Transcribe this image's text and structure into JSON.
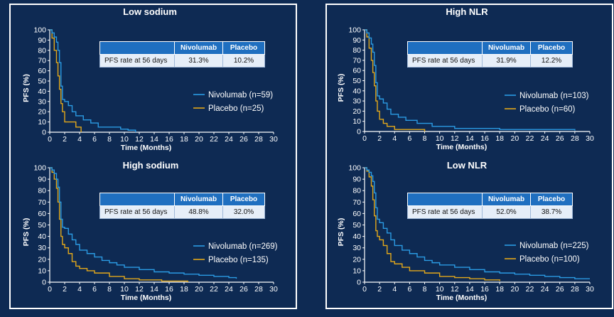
{
  "colors": {
    "background": "#0e2a53",
    "nivolumab": "#2b9be3",
    "placebo": "#e3a81a",
    "axis": "#ffffff"
  },
  "table": {
    "row_label": "PFS rate at 56 days",
    "col_nivolumab": "Nivolumab",
    "col_placebo": "Placebo"
  },
  "chart_data": [
    {
      "type": "line",
      "title": "Low sodium",
      "xlabel": "Time (Months)",
      "ylabel": "PFS (%)",
      "xlim": [
        0,
        30
      ],
      "ylim": [
        0,
        100
      ],
      "xticks": [
        "0",
        "2",
        "4",
        "6",
        "8",
        "10",
        "12",
        "14",
        "16",
        "18",
        "20",
        "22",
        "24",
        "26",
        "28",
        "30"
      ],
      "yticks": [
        "0",
        "10",
        "20",
        "30",
        "40",
        "50",
        "60",
        "70",
        "80",
        "90",
        "100"
      ],
      "legend": [
        "Nivolumab (n=59)",
        "Placebo (n=25)"
      ],
      "pfs_rate": {
        "nivolumab": "31.3%",
        "placebo": "10.2%"
      },
      "series": [
        {
          "name": "Nivolumab (n=59)",
          "x": [
            0,
            0.3,
            0.6,
            0.9,
            1.1,
            1.3,
            1.5,
            1.7,
            2.0,
            2.5,
            3.0,
            3.5,
            4.5,
            5.5,
            6.5,
            9.5,
            10.5,
            11.5
          ],
          "y": [
            100,
            97,
            93,
            88,
            80,
            68,
            45,
            32,
            30,
            26,
            20,
            16,
            12,
            9,
            5,
            3,
            2,
            0
          ]
        },
        {
          "name": "Placebo (n=25)",
          "x": [
            0,
            0.3,
            0.6,
            0.9,
            1.1,
            1.3,
            1.5,
            1.7,
            2.0,
            2.5,
            3.5,
            4.2
          ],
          "y": [
            100,
            92,
            80,
            68,
            55,
            42,
            28,
            20,
            10,
            10,
            5,
            0
          ]
        }
      ]
    },
    {
      "type": "line",
      "title": "High NLR",
      "xlabel": "Time (Months)",
      "ylabel": "PFS (%)",
      "xlim": [
        0,
        30
      ],
      "ylim": [
        0,
        100
      ],
      "xticks": [
        "0",
        "2",
        "4",
        "6",
        "8",
        "10",
        "12",
        "14",
        "16",
        "18",
        "20",
        "22",
        "24",
        "26",
        "28",
        "30"
      ],
      "yticks": [
        "0",
        "10",
        "20",
        "30",
        "40",
        "50",
        "60",
        "70",
        "80",
        "90",
        "100"
      ],
      "legend": [
        "Nivolumab (n=103)",
        "Placebo (n=60)"
      ],
      "pfs_rate": {
        "nivolumab": "31.9%",
        "placebo": "12.2%"
      },
      "series": [
        {
          "name": "Nivolumab (n=103)",
          "x": [
            0,
            0.3,
            0.6,
            0.9,
            1.1,
            1.3,
            1.5,
            1.7,
            2.0,
            2.5,
            3.0,
            3.5,
            4.5,
            5.5,
            7.0,
            9.0,
            12.0,
            18.0,
            28.0
          ],
          "y": [
            100,
            97,
            92,
            86,
            78,
            65,
            48,
            35,
            32,
            28,
            22,
            17,
            14,
            11,
            8,
            5,
            3,
            2,
            1
          ]
        },
        {
          "name": "Placebo (n=60)",
          "x": [
            0,
            0.3,
            0.6,
            0.9,
            1.1,
            1.3,
            1.5,
            1.7,
            2.0,
            2.5,
            3.0,
            4.0,
            8.0
          ],
          "y": [
            100,
            93,
            82,
            70,
            58,
            45,
            30,
            20,
            12,
            8,
            5,
            2,
            0
          ]
        }
      ]
    },
    {
      "type": "line",
      "title": "High sodium",
      "xlabel": "Time (Months)",
      "ylabel": "PFS (%)",
      "xlim": [
        0,
        30
      ],
      "ylim": [
        0,
        100
      ],
      "xticks": [
        "0",
        "2",
        "4",
        "6",
        "8",
        "10",
        "12",
        "14",
        "16",
        "18",
        "20",
        "22",
        "24",
        "26",
        "28",
        "30"
      ],
      "yticks": [
        "0",
        "10",
        "20",
        "30",
        "40",
        "50",
        "60",
        "70",
        "80",
        "90",
        "100"
      ],
      "legend": [
        "Nivolumab (n=269)",
        "Placebo (n=135)"
      ],
      "pfs_rate": {
        "nivolumab": "48.8%",
        "placebo": "32.0%"
      },
      "series": [
        {
          "name": "Nivolumab (n=269)",
          "x": [
            0,
            0.3,
            0.6,
            0.9,
            1.1,
            1.3,
            1.5,
            1.7,
            2.0,
            2.5,
            3.0,
            3.5,
            4.0,
            5.0,
            6.0,
            7.0,
            8.0,
            9.0,
            10.0,
            12.0,
            14.0,
            16.0,
            18.0,
            20.0,
            22.0,
            24.0,
            25.0
          ],
          "y": [
            100,
            98,
            95,
            90,
            83,
            70,
            55,
            48,
            47,
            42,
            37,
            33,
            28,
            25,
            22,
            19,
            17,
            15,
            13,
            11,
            9,
            8,
            7,
            6,
            5,
            4,
            3
          ]
        },
        {
          "name": "Placebo (n=135)",
          "x": [
            0,
            0.3,
            0.6,
            0.9,
            1.1,
            1.3,
            1.5,
            1.7,
            2.0,
            2.5,
            3.0,
            3.5,
            4.0,
            5.0,
            6.0,
            8.0,
            10.0,
            12.0,
            15.0,
            18.5
          ],
          "y": [
            100,
            96,
            90,
            82,
            70,
            55,
            40,
            33,
            30,
            25,
            18,
            14,
            12,
            10,
            8,
            5,
            3,
            2,
            1,
            0
          ]
        }
      ]
    },
    {
      "type": "line",
      "title": "Low NLR",
      "xlabel": "Time (Months)",
      "ylabel": "PFS (%)",
      "xlim": [
        0,
        30
      ],
      "ylim": [
        0,
        100
      ],
      "xticks": [
        "0",
        "2",
        "4",
        "6",
        "8",
        "10",
        "12",
        "14",
        "16",
        "18",
        "20",
        "22",
        "24",
        "26",
        "28",
        "30"
      ],
      "yticks": [
        "0",
        "10",
        "20",
        "30",
        "40",
        "50",
        "60",
        "70",
        "80",
        "90",
        "100"
      ],
      "legend": [
        "Nivolumab (n=225)",
        "Placebo (n=100)"
      ],
      "pfs_rate": {
        "nivolumab": "52.0%",
        "placebo": "38.7%"
      },
      "series": [
        {
          "name": "Nivolumab (n=225)",
          "x": [
            0,
            0.3,
            0.6,
            0.9,
            1.1,
            1.3,
            1.5,
            1.7,
            2.0,
            2.5,
            3.0,
            3.5,
            4.0,
            5.0,
            6.0,
            7.0,
            8.0,
            9.0,
            10.0,
            12.0,
            14.0,
            16.0,
            18.0,
            20.0,
            22.0,
            24.0,
            26.0,
            28.0,
            30.0
          ],
          "y": [
            100,
            98,
            96,
            93,
            88,
            78,
            65,
            55,
            52,
            47,
            43,
            37,
            32,
            28,
            25,
            22,
            19,
            17,
            15,
            13,
            11,
            9,
            8,
            7,
            6,
            5,
            4,
            3,
            3
          ]
        },
        {
          "name": "Placebo (n=100)",
          "x": [
            0,
            0.3,
            0.6,
            0.9,
            1.1,
            1.3,
            1.5,
            1.7,
            2.0,
            2.5,
            3.0,
            3.5,
            4.0,
            5.0,
            6.0,
            8.0,
            10.0,
            12.0,
            14.0,
            16.0,
            18.0
          ],
          "y": [
            100,
            97,
            92,
            84,
            72,
            58,
            45,
            40,
            37,
            32,
            25,
            18,
            16,
            13,
            10,
            8,
            5,
            4,
            3,
            2,
            1
          ]
        }
      ]
    }
  ]
}
